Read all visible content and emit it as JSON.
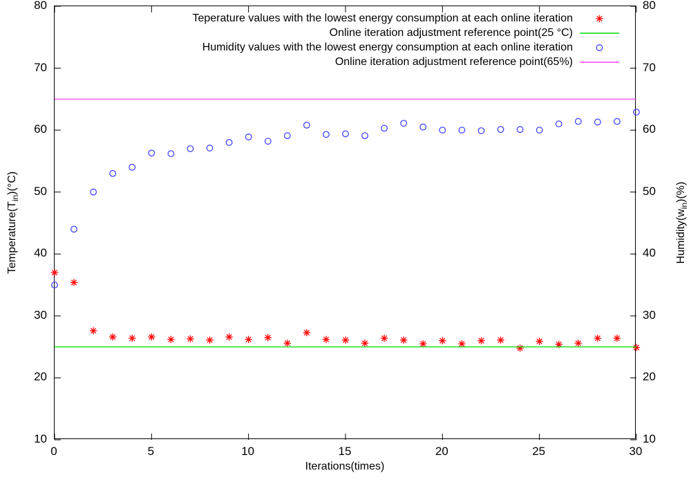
{
  "chart_data": {
    "type": "scatter",
    "title": "",
    "xlabel": "Iterations(times)",
    "ylabel_left": {
      "pre": "Temperature(T",
      "sub": "in",
      "post": ")(°C)"
    },
    "ylabel_right": {
      "pre": "Humidity(w",
      "sub": "in",
      "post": ")(%)"
    },
    "xlim": [
      0,
      30
    ],
    "ylim_left": [
      10,
      80
    ],
    "ylim_right": [
      10,
      80
    ],
    "xticks": [
      0,
      5,
      10,
      15,
      20,
      25,
      30
    ],
    "yticks_left": [
      10,
      20,
      30,
      40,
      50,
      60,
      70,
      80
    ],
    "yticks_right": [
      10,
      20,
      30,
      40,
      50,
      60,
      70,
      80
    ],
    "grid": false,
    "legend_position": "top-right-inside",
    "frame_color": "#000000",
    "x": [
      0,
      1,
      2,
      3,
      4,
      5,
      6,
      7,
      8,
      9,
      10,
      11,
      12,
      13,
      14,
      15,
      16,
      17,
      18,
      19,
      20,
      21,
      22,
      23,
      24,
      25,
      26,
      27,
      28,
      29,
      30
    ],
    "series": [
      {
        "name": "Teperature values with the lowest energy consumption at each online iteration",
        "kind": "points",
        "marker": "asterisk",
        "color": "#ff0000",
        "axis": "left",
        "values": [
          37.0,
          35.4,
          27.6,
          26.6,
          26.4,
          26.6,
          26.2,
          26.3,
          26.1,
          26.6,
          26.2,
          26.5,
          25.6,
          27.3,
          26.2,
          26.1,
          25.6,
          26.4,
          26.1,
          25.5,
          26.0,
          25.5,
          26.0,
          26.1,
          24.8,
          25.9,
          25.4,
          25.6,
          26.4,
          26.4,
          24.9
        ]
      },
      {
        "name": "Online iteration adjustment reference point(25 °C)",
        "kind": "hline",
        "y": 25,
        "color": "#00dd00",
        "axis": "left"
      },
      {
        "name": "Humidity values with the lowest energy consumption at each online iteration",
        "kind": "points",
        "marker": "open-circle",
        "color": "#4444ff",
        "axis": "right",
        "values": [
          35.0,
          44.0,
          50.0,
          53.0,
          54.0,
          56.3,
          56.2,
          57.0,
          57.1,
          58.0,
          58.9,
          58.2,
          59.1,
          60.8,
          59.3,
          59.4,
          59.1,
          60.3,
          61.1,
          60.5,
          60.0,
          60.0,
          59.9,
          60.1,
          60.1,
          60.0,
          61.0,
          61.4,
          61.3,
          61.4,
          62.9
        ]
      },
      {
        "name": "Online iteration adjustment reference point(65%)",
        "kind": "hline",
        "y": 65,
        "color": "#ff44ff",
        "axis": "right"
      }
    ]
  }
}
